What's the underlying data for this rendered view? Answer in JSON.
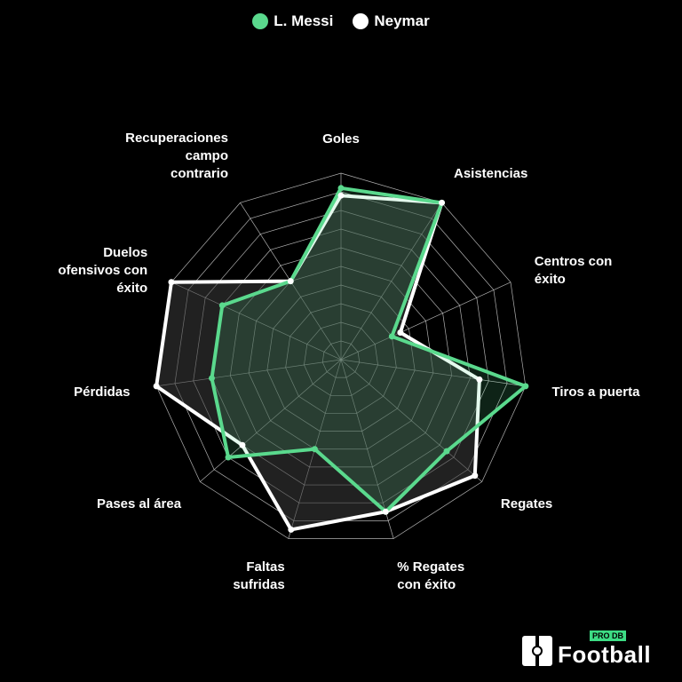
{
  "chart_data": {
    "type": "radar",
    "axes": [
      "Goles",
      "Asistencias",
      "Centros con\néxito",
      "Tiros a puerta",
      "Regates",
      "% Regates\ncon éxito",
      "Faltas\nsufridas",
      "Pases al área",
      "Pérdidas",
      "Duelos\nofensivos con\néxito",
      "Recuperaciones\ncampo\ncontrario"
    ],
    "rmax": 10,
    "rings": 10,
    "series": [
      {
        "name": "L. Messi",
        "color": "#5ad98d",
        "values": [
          9.2,
          10.0,
          3.0,
          10.0,
          7.5,
          8.5,
          5.0,
          8.0,
          7.0,
          7.0,
          5.0
        ]
      },
      {
        "name": "Neymar",
        "color": "#ffffff",
        "values": [
          8.8,
          10.0,
          3.5,
          7.5,
          9.5,
          8.5,
          9.5,
          7.0,
          10.0,
          10.0,
          5.0
        ]
      }
    ]
  },
  "legend": {
    "messi_label": "L. Messi",
    "neymar_label": "Neymar",
    "messi_color": "#5ad98d",
    "neymar_color": "#ffffff"
  },
  "logo": {
    "word": "Football",
    "badge": "PRO DB"
  }
}
